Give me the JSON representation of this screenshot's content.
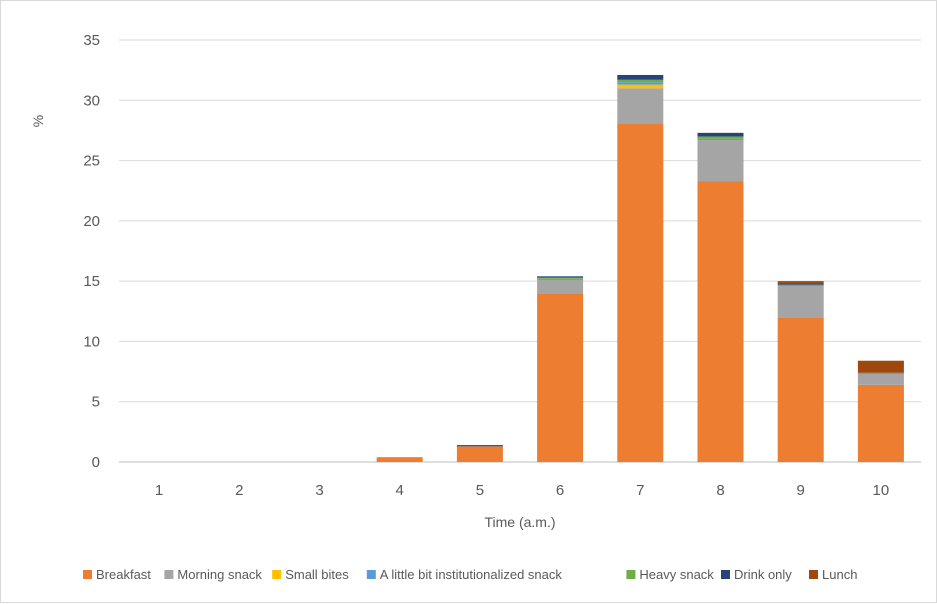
{
  "chart_data": {
    "type": "bar",
    "stacked": true,
    "title": "",
    "xlabel": "Time (a.m.)",
    "ylabel": "%",
    "ylim": [
      0,
      35
    ],
    "yticks": [
      0,
      5,
      10,
      15,
      20,
      25,
      30,
      35
    ],
    "grid": true,
    "legend_position": "bottom",
    "categories": [
      "1",
      "2",
      "3",
      "4",
      "5",
      "6",
      "7",
      "8",
      "9",
      "10"
    ],
    "series": [
      {
        "name": "Breakfast",
        "color": "#ed7d31",
        "values": [
          0,
          0,
          0,
          0.4,
          1.3,
          14.0,
          28.1,
          23.3,
          12.0,
          6.4
        ]
      },
      {
        "name": "Morning snack",
        "color": "#a5a5a5",
        "values": [
          0,
          0,
          0,
          0,
          0,
          1.1,
          2.9,
          3.4,
          2.6,
          0.9
        ]
      },
      {
        "name": "Small bites",
        "color": "#ffc000",
        "values": [
          0,
          0,
          0,
          0,
          0,
          0,
          0.3,
          0,
          0,
          0
        ]
      },
      {
        "name": "A little bit institutionalized snack",
        "color": "#5b9bd5",
        "values": [
          0,
          0,
          0,
          0,
          0,
          0.1,
          0.2,
          0.1,
          0,
          0.1
        ]
      },
      {
        "name": "Heavy snack",
        "color": "#70ad47",
        "values": [
          0,
          0,
          0,
          0,
          0,
          0.1,
          0.2,
          0.2,
          0.1,
          0
        ]
      },
      {
        "name": "Drink only",
        "color": "#264478",
        "values": [
          0,
          0,
          0,
          0,
          0.1,
          0.1,
          0.4,
          0.3,
          0.1,
          0
        ]
      },
      {
        "name": "Lunch",
        "color": "#9e480e",
        "values": [
          0,
          0,
          0,
          0,
          0,
          0,
          0,
          0,
          0.2,
          1.0
        ]
      }
    ]
  }
}
